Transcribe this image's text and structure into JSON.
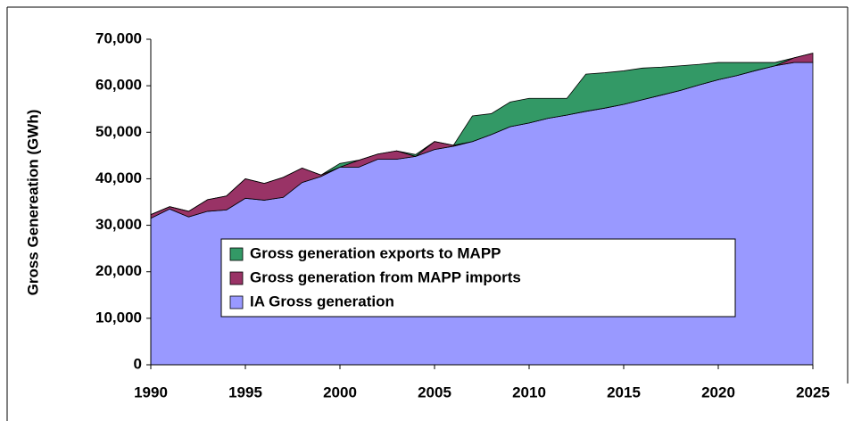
{
  "chart_data": {
    "type": "area",
    "y_label": "Gross Genereation (GWh)",
    "x": [
      1990,
      1991,
      1992,
      1993,
      1994,
      1995,
      1996,
      1997,
      1998,
      1999,
      2000,
      2001,
      2002,
      2003,
      2004,
      2005,
      2006,
      2007,
      2008,
      2009,
      2010,
      2011,
      2012,
      2013,
      2014,
      2015,
      2016,
      2017,
      2018,
      2019,
      2020,
      2021,
      2022,
      2023,
      2024,
      2025
    ],
    "stacked": true,
    "series": [
      {
        "name": "IA Gross generation",
        "color": "#9999ff",
        "values": [
          31500,
          33500,
          31800,
          33000,
          33300,
          35800,
          35400,
          36000,
          39200,
          40500,
          42500,
          42500,
          44200,
          44200,
          44800,
          46300,
          47000,
          48000,
          49500,
          51200,
          52000,
          53000,
          53700,
          54500,
          55200,
          56000,
          57000,
          58000,
          59000,
          60200,
          61300,
          62200,
          63300,
          64300,
          65000,
          65000
        ]
      },
      {
        "name": "Gross generation from MAPP imports",
        "color": "#993366",
        "values": [
          800,
          500,
          1200,
          2500,
          3000,
          4200,
          3600,
          4300,
          3100,
          300,
          0,
          1500,
          1100,
          1800,
          0,
          1700,
          200,
          0,
          0,
          0,
          0,
          0,
          0,
          0,
          0,
          0,
          0,
          0,
          0,
          0,
          0,
          0,
          0,
          0,
          1000,
          2000
        ]
      },
      {
        "name": "Gross generation exports to MAPP",
        "color": "#339966",
        "values": [
          0,
          0,
          0,
          0,
          0,
          0,
          0,
          0,
          0,
          0,
          800,
          0,
          0,
          0,
          400,
          0,
          0,
          5500,
          4500,
          5300,
          5300,
          4300,
          3600,
          8000,
          7600,
          7200,
          6800,
          6000,
          5300,
          4400,
          3700,
          2800,
          1700,
          700,
          0,
          0
        ]
      }
    ],
    "xlim": [
      1990,
      2025
    ],
    "xticks": [
      1990,
      1995,
      2000,
      2005,
      2010,
      2015,
      2020,
      2025
    ],
    "ylim": [
      0,
      70000
    ],
    "yticks": [
      0,
      {
        "value": 10000,
        "label": "10,000"
      },
      {
        "value": 20000,
        "label": "20,000"
      },
      {
        "value": 30000,
        "label": "30,000"
      },
      {
        "value": 40000,
        "label": "40,000"
      },
      {
        "value": 50000,
        "label": "50,000"
      },
      {
        "value": 60000,
        "label": "60,000"
      },
      {
        "value": 70000,
        "label": "70,000"
      }
    ],
    "legend": "center"
  }
}
